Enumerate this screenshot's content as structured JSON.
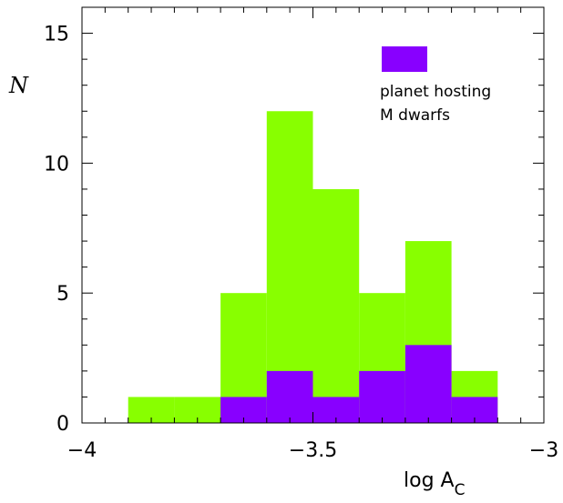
{
  "chart_data": {
    "type": "bar",
    "title": "",
    "xlabel": "log A",
    "xlabel_subscript": "C",
    "ylabel": "N",
    "xlim": [
      -4,
      -3
    ],
    "ylim": [
      0,
      16
    ],
    "x_ticks": [
      -4,
      -3.5,
      -3
    ],
    "x_tick_labels": [
      "−4",
      "−3.5",
      "−3"
    ],
    "y_ticks": [
      0,
      5,
      10,
      15
    ],
    "y_tick_labels": [
      "0",
      "5",
      "10",
      "15"
    ],
    "bin_edges": [
      -3.9,
      -3.8,
      -3.7,
      -3.6,
      -3.5,
      -3.4,
      -3.3,
      -3.2,
      -3.1
    ],
    "series": [
      {
        "name": "",
        "color": "#88ff00",
        "values": [
          1,
          1,
          5,
          12,
          9,
          5,
          7,
          2
        ]
      },
      {
        "name": "planet hosting M dwarfs",
        "color": "#8800ff",
        "values": [
          0,
          0,
          1,
          2,
          1,
          2,
          3,
          1
        ]
      }
    ],
    "legend": {
      "placement": "top-right",
      "line1": "planet hosting",
      "line2": "M dwarfs"
    },
    "grid": false
  }
}
